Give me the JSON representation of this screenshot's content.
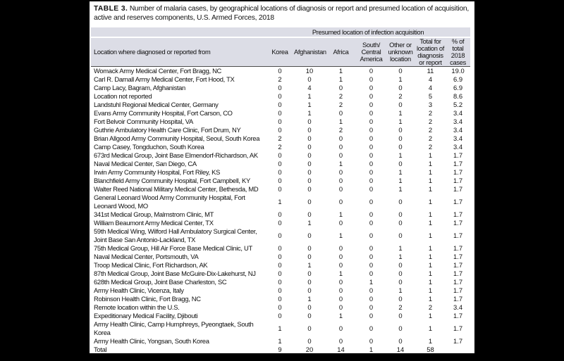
{
  "title": {
    "label": "TABLE 3.",
    "text": "Number of malaria cases, by geographical locations of diagnosis or report and presumed location of acquisition, active and reserves components, U.S. Armed Forces, 2018"
  },
  "colors": {
    "header_band": "#dcdde6",
    "header_rule": "#4d4d4d",
    "page_frame": "#000000",
    "panel_background": "#ffffff"
  },
  "table": {
    "span_header": "Presumed location of infection acquisition",
    "location_header": "Location where diagnosed or reported from",
    "value_headers": [
      "Korea",
      "Afghanistan",
      "Africa",
      "South/\nCentral\nAmerica",
      "Other or\nunknown\nlocation",
      "Total for\nlocation of\ndiagnosis\nor report",
      "% of\ntotal 2018\ncases"
    ],
    "rows": [
      {
        "location": "Womack Army Medical Center, Fort Bragg, NC",
        "values": [
          "0",
          "10",
          "1",
          "0",
          "0",
          "11",
          "19.0"
        ]
      },
      {
        "location": "Carl R. Darnall Army Medical Center, Fort Hood, TX",
        "values": [
          "2",
          "0",
          "1",
          "0",
          "1",
          "4",
          "6.9"
        ]
      },
      {
        "location": "Camp Lacy, Bagram, Afghanistan",
        "values": [
          "0",
          "4",
          "0",
          "0",
          "0",
          "4",
          "6.9"
        ]
      },
      {
        "location": "Location not reported",
        "values": [
          "0",
          "1",
          "2",
          "0",
          "2",
          "5",
          "8.6"
        ]
      },
      {
        "location": "Landstuhl Regional Medical Center, Germany",
        "values": [
          "0",
          "1",
          "2",
          "0",
          "0",
          "3",
          "5.2"
        ]
      },
      {
        "location": "Evans Army Community Hospital, Fort Carson, CO",
        "values": [
          "0",
          "1",
          "0",
          "0",
          "1",
          "2",
          "3.4"
        ]
      },
      {
        "location": "Fort Belvoir Community Hospital, VA",
        "values": [
          "0",
          "0",
          "1",
          "0",
          "1",
          "2",
          "3.4"
        ]
      },
      {
        "location": "Guthrie Ambulatory Health Care Clinic, Fort Drum, NY",
        "values": [
          "0",
          "0",
          "2",
          "0",
          "0",
          "2",
          "3.4"
        ]
      },
      {
        "location": "Brian Allgood Army Community Hospital, Seoul, South Korea",
        "values": [
          "2",
          "0",
          "0",
          "0",
          "0",
          "2",
          "3.4"
        ]
      },
      {
        "location": "Camp Casey, Tongduchon, South Korea",
        "values": [
          "2",
          "0",
          "0",
          "0",
          "0",
          "2",
          "3.4"
        ]
      },
      {
        "location": "673rd Medical Group, Joint Base Elmendorf-Richardson, AK",
        "values": [
          "0",
          "0",
          "0",
          "0",
          "1",
          "1",
          "1.7"
        ]
      },
      {
        "location": "Naval Medical Center, San Diego, CA",
        "values": [
          "0",
          "0",
          "1",
          "0",
          "0",
          "1",
          "1.7"
        ]
      },
      {
        "location": "Irwin Army Community Hospital, Fort Riley, KS",
        "values": [
          "0",
          "0",
          "0",
          "0",
          "1",
          "1",
          "1.7"
        ]
      },
      {
        "location": "Blanchfield Army Community Hospital, Fort Campbell, KY",
        "values": [
          "0",
          "0",
          "0",
          "0",
          "1",
          "1",
          "1.7"
        ]
      },
      {
        "location": "Walter Reed National Military Medical Center, Bethesda, MD",
        "values": [
          "0",
          "0",
          "0",
          "0",
          "1",
          "1",
          "1.7"
        ]
      },
      {
        "location": "General Leonard Wood Army Community Hospital, Fort Leonard Wood, MO",
        "values": [
          "1",
          "0",
          "0",
          "0",
          "0",
          "1",
          "1.7"
        ]
      },
      {
        "location": "341st Medical Group, Malmstrom Clinic, MT",
        "values": [
          "0",
          "0",
          "1",
          "0",
          "0",
          "1",
          "1.7"
        ]
      },
      {
        "location": "William Beaumont Army Medical Center, TX",
        "values": [
          "0",
          "1",
          "0",
          "0",
          "0",
          "1",
          "1.7"
        ]
      },
      {
        "location": "59th Medical Wing, Wilford Hall Ambulatory Surgical Center, Joint Base San Antonio-Lackland, TX",
        "values": [
          "0",
          "0",
          "1",
          "0",
          "0",
          "1",
          "1.7"
        ]
      },
      {
        "location": "75th Medical Group, Hill Air Force Base Medical Clinic, UT",
        "values": [
          "0",
          "0",
          "0",
          "0",
          "1",
          "1",
          "1.7"
        ]
      },
      {
        "location": "Naval Medical Center, Portsmouth, VA",
        "values": [
          "0",
          "0",
          "0",
          "0",
          "1",
          "1",
          "1.7"
        ]
      },
      {
        "location": "Troop Medical Clinic, Fort Richardson, AK",
        "values": [
          "0",
          "1",
          "0",
          "0",
          "0",
          "1",
          "1.7"
        ]
      },
      {
        "location": "87th Medical Group, Joint Base McGuire-Dix-Lakehurst, NJ",
        "values": [
          "0",
          "0",
          "1",
          "0",
          "0",
          "1",
          "1.7"
        ]
      },
      {
        "location": "628th Medical Group, Joint Base Charleston, SC",
        "values": [
          "0",
          "0",
          "0",
          "1",
          "0",
          "1",
          "1.7"
        ]
      },
      {
        "location": "Army Health Clinic, Vicenza, Italy",
        "values": [
          "0",
          "0",
          "0",
          "0",
          "1",
          "1",
          "1.7"
        ]
      },
      {
        "location": "Robinson Health Clinic, Fort Bragg, NC",
        "values": [
          "0",
          "1",
          "0",
          "0",
          "0",
          "1",
          "1.7"
        ]
      },
      {
        "location": "Remote location within the U.S.",
        "values": [
          "0",
          "0",
          "0",
          "0",
          "2",
          "2",
          "3.4"
        ]
      },
      {
        "location": "Expeditionary Medical Facility, Djibouti",
        "values": [
          "0",
          "0",
          "1",
          "0",
          "0",
          "1",
          "1.7"
        ]
      },
      {
        "location": "Army Health Clinic, Camp Humphreys, Pyeongtaek, South Korea",
        "values": [
          "1",
          "0",
          "0",
          "0",
          "0",
          "1",
          "1.7"
        ]
      },
      {
        "location": "Army Health Clinic, Yongsan, South Korea",
        "values": [
          "1",
          "0",
          "0",
          "0",
          "0",
          "1",
          "1.7"
        ]
      },
      {
        "location": "Total",
        "values": [
          "9",
          "20",
          "14",
          "1",
          "14",
          "58",
          ""
        ]
      }
    ]
  }
}
